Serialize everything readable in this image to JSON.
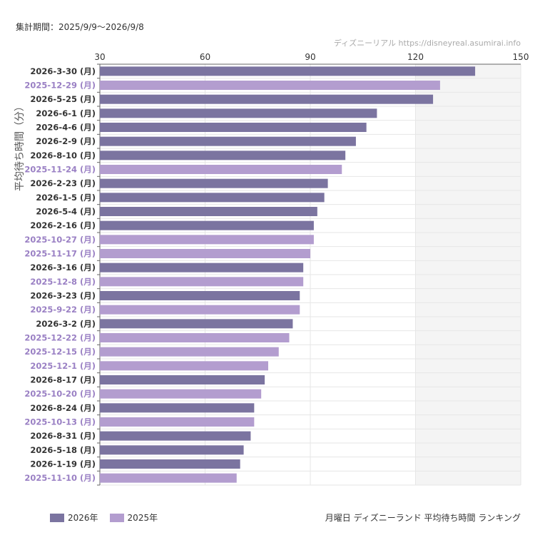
{
  "header": {
    "period": "集計期間：2025/9/9〜2026/9/8",
    "source": "ディズニーリアル https://disneyreal.asumirai.info"
  },
  "footer": {
    "title": "月曜日 ディズニーランド 平均待ち時間 ランキング"
  },
  "colors": {
    "s2026": "#7b74a0",
    "s2025": "#b39dcf",
    "label2026": "#333333",
    "label2025": "#9a80c4"
  },
  "chart_data": {
    "type": "bar",
    "orientation": "horizontal",
    "ylabel": "平均待ち時間（分）",
    "xlim": [
      30,
      150
    ],
    "xticks": [
      30,
      60,
      90,
      120,
      150
    ],
    "xaxis_position": "top",
    "grid": true,
    "legend_position": "bottom-left",
    "series": [
      {
        "name": "2026年",
        "color": "#7b74a0"
      },
      {
        "name": "2025年",
        "color": "#b39dcf"
      }
    ],
    "categories": [
      "2026-3-30 (月)",
      "2025-12-29 (月)",
      "2026-5-25 (月)",
      "2026-6-1 (月)",
      "2026-4-6 (月)",
      "2026-2-9 (月)",
      "2026-8-10 (月)",
      "2025-11-24 (月)",
      "2026-2-23 (月)",
      "2026-1-5 (月)",
      "2026-5-4 (月)",
      "2026-2-16 (月)",
      "2025-10-27 (月)",
      "2025-11-17 (月)",
      "2026-3-16 (月)",
      "2025-12-8 (月)",
      "2026-3-23 (月)",
      "2025-9-22 (月)",
      "2026-3-2 (月)",
      "2025-12-22 (月)",
      "2025-12-15 (月)",
      "2025-12-1 (月)",
      "2026-8-17 (月)",
      "2025-10-20 (月)",
      "2026-8-24 (月)",
      "2025-10-13 (月)",
      "2026-8-31 (月)",
      "2026-5-18 (月)",
      "2026-1-19 (月)",
      "2025-11-10 (月)"
    ],
    "values": [
      137,
      127,
      125,
      109,
      106,
      103,
      100,
      99,
      95,
      94,
      92,
      91,
      91,
      90,
      88,
      88,
      87,
      87,
      85,
      84,
      81,
      78,
      77,
      76,
      74,
      74,
      73,
      71,
      70,
      69
    ],
    "series_index": [
      "2026年",
      "2025年",
      "2026年",
      "2026年",
      "2026年",
      "2026年",
      "2026年",
      "2025年",
      "2026年",
      "2026年",
      "2026年",
      "2026年",
      "2025年",
      "2025年",
      "2026年",
      "2025年",
      "2026年",
      "2025年",
      "2026年",
      "2025年",
      "2025年",
      "2025年",
      "2026年",
      "2025年",
      "2026年",
      "2025年",
      "2026年",
      "2026年",
      "2026年",
      "2025年"
    ]
  }
}
